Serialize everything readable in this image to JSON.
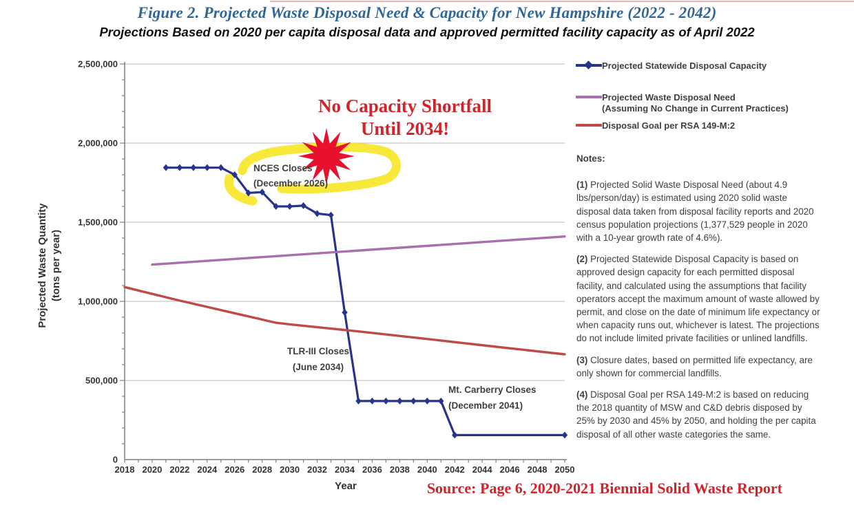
{
  "header": {
    "title": "Figure 2. Projected Waste Disposal Need & Capacity for New Hampshire (2022 - 2042)",
    "subtitle": "Projections Based on 2020 per capita disposal data and approved permitted facility capacity as of April 2022"
  },
  "source_note": "Source: Page 6, 2020-2021 Biennial Solid Waste Report",
  "colors": {
    "title_blue": "#2F6699",
    "capacity_blue": "#27348B",
    "need_purple": "#A96FAE",
    "goal_red": "#BE4B48",
    "annotation_red": "#D2232A",
    "highlight_yellow": "#F7E418",
    "starburst_red": "#E8112D",
    "grid_gray": "#C6C6C6",
    "axis_gray": "#7F7F7F",
    "text_dark": "#3F3F3F"
  },
  "chart_data": {
    "type": "line",
    "title": "Figure 2. Projected Waste Disposal Need & Capacity for New Hampshire (2022 - 2042)",
    "xlabel": "Year",
    "ylabel": "Projected Waste Quantity (tons per year)",
    "ylabel_lines": [
      "Projected Waste Quantity",
      "(tons per year)"
    ],
    "xlim": [
      2018,
      2050
    ],
    "ylim": [
      0,
      2500000
    ],
    "grid": "horizontal",
    "legend_position": "right",
    "x_tick_labels": [
      "2018",
      "2020",
      "2022",
      "2024",
      "2026",
      "2028",
      "2030",
      "2032",
      "2034",
      "2036",
      "2038",
      "2040",
      "2042",
      "2044",
      "2046",
      "2048",
      "2050"
    ],
    "x_label_step": 2,
    "x_minor_step": 1,
    "y_tick_labels": [
      "0",
      "500,000",
      "1,000,000",
      "1,500,000",
      "2,000,000",
      "2,500,000"
    ],
    "y_label_step": 500000,
    "y_minor_step": 100000,
    "series": [
      {
        "id": "capacity",
        "name": "Projected Statewide Disposal Capacity",
        "color_key": "capacity_blue",
        "marker": "diamond",
        "points": [
          [
            2021,
            1845000
          ],
          [
            2022,
            1845000
          ],
          [
            2023,
            1845000
          ],
          [
            2024,
            1845000
          ],
          [
            2025,
            1845000
          ],
          [
            2026,
            1800000
          ],
          [
            2027,
            1685000
          ],
          [
            2028,
            1690000
          ],
          [
            2029,
            1600000
          ],
          [
            2030,
            1600000
          ],
          [
            2031,
            1605000
          ],
          [
            2032,
            1555000
          ],
          [
            2033,
            1545000
          ],
          [
            2034,
            930000
          ],
          [
            2035,
            370000
          ],
          [
            2036,
            370000
          ],
          [
            2037,
            370000
          ],
          [
            2038,
            370000
          ],
          [
            2039,
            370000
          ],
          [
            2040,
            370000
          ],
          [
            2041,
            370000
          ],
          [
            2042,
            155000
          ],
          [
            2050,
            155000
          ]
        ],
        "marker_years": [
          2021,
          2022,
          2023,
          2024,
          2025,
          2026,
          2027,
          2028,
          2029,
          2030,
          2031,
          2032,
          2033,
          2034,
          2035,
          2036,
          2037,
          2038,
          2039,
          2040,
          2041,
          2042,
          2050
        ]
      },
      {
        "id": "need",
        "name": "Projected Waste Disposal Need (Assuming No Change in Current Practices)",
        "color_key": "need_purple",
        "marker": "none",
        "points": [
          [
            2020,
            1232000
          ],
          [
            2050,
            1410000
          ]
        ]
      },
      {
        "id": "goal",
        "name": "Disposal Goal per RSA 149-M:2",
        "color_key": "goal_red",
        "marker": "none",
        "points": [
          [
            2018,
            1090000
          ],
          [
            2022,
            1005000
          ],
          [
            2026,
            925000
          ],
          [
            2029,
            865000
          ],
          [
            2030,
            855000
          ],
          [
            2035,
            810000
          ],
          [
            2040,
            762000
          ],
          [
            2045,
            713000
          ],
          [
            2050,
            665000
          ]
        ]
      }
    ],
    "annotations": {
      "headline": {
        "lines": [
          "No Capacity Shortfall",
          "Until 2034!"
        ]
      },
      "nces": {
        "lines": [
          "NCES Closes",
          "(December 2026)"
        ]
      },
      "tlr": {
        "lines": [
          "TLR-III Closes",
          "(June 2034)"
        ]
      },
      "carberry": {
        "lines": [
          "Mt. Carberry Closes",
          "(December 2041)"
        ]
      }
    }
  },
  "legend": {
    "items": [
      {
        "id": "capacity",
        "color_key": "capacity_blue",
        "marker": "diamond",
        "label_lines": [
          "Projected Statewide Disposal Capacity"
        ]
      },
      {
        "id": "need",
        "color_key": "need_purple",
        "marker": "none",
        "label_lines": [
          "Projected Waste Disposal Need",
          "(Assuming No Change in Current Practices)"
        ]
      },
      {
        "id": "goal",
        "color_key": "goal_red",
        "marker": "none",
        "label_lines": [
          "Disposal Goal per RSA 149-M:2"
        ]
      }
    ]
  },
  "notes": {
    "heading": "Notes:",
    "items": [
      {
        "num": "(1)",
        "text": "Projected Solid Waste Disposal Need (about 4.9 lbs/person/day) is estimated using 2020 solid waste disposal data taken from disposal facility reports and 2020 census population projections (1,377,529 people in 2020 with a 10-year growth rate of 4.6%)."
      },
      {
        "num": "(2)",
        "text": "Projected Statewide Disposal Capacity is based on approved design capacity for each permitted disposal facility, and calculated using the assumptions that facility operators accept the maximum amount of waste allowed by permit, and close on the date of minimum life expectancy or when capacity runs out, whichever is latest. The projections do not include limited private facilities or unlined landfills."
      },
      {
        "num": "(3)",
        "text": "Closure dates, based on permitted life expectancy, are only shown for commercial landfills."
      },
      {
        "num": "(4)",
        "text": "Disposal Goal per RSA 149-M:2 is based on reducing the 2018 quantity of MSW and C&D debris disposed by 25% by 2030 and 45% by 2050, and holding the per capita disposal of all other waste categories the same."
      }
    ]
  }
}
